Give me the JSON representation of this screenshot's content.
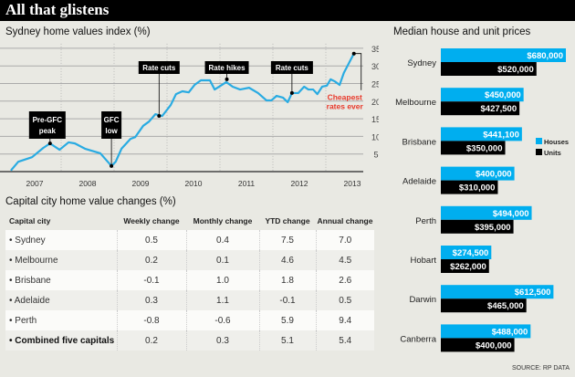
{
  "header": {
    "title": "All that glistens"
  },
  "colors": {
    "houses": "#00aeef",
    "units": "#000000",
    "line": "#29abe2",
    "highlight": "#e8392b",
    "background": "#e9e9e3"
  },
  "chart_data": [
    {
      "type": "line",
      "title": "Sydney home values index (%)",
      "xlabel": "",
      "ylabel": "",
      "x_ticks": [
        "2007",
        "2008",
        "2009",
        "2010",
        "2011",
        "2012",
        "2013"
      ],
      "y_ticks": [
        5,
        10,
        15,
        20,
        25,
        30,
        35
      ],
      "ylim": [
        0,
        35
      ],
      "xlim": [
        2007.0,
        2014.0
      ],
      "grid": true,
      "axis_side": "right",
      "series": [
        {
          "x": [
            2007.05,
            2007.19,
            2007.45,
            2007.66,
            2007.79,
            2007.97,
            2008.14,
            2008.26,
            2008.45,
            2008.74,
            2008.95,
            2009.03,
            2009.14,
            2009.31,
            2009.4,
            2009.55,
            2009.66,
            2009.78,
            2009.91,
            2010.07,
            2010.17,
            2010.29,
            2010.41,
            2010.52,
            2010.64,
            2010.81,
            2010.9,
            2011.12,
            2011.24,
            2011.38,
            2011.55,
            2011.72,
            2011.88,
            2011.97,
            2012.07,
            2012.19,
            2012.28,
            2012.36,
            2012.48,
            2012.59,
            2012.67,
            2012.76,
            2012.84,
            2012.93,
            2013.02,
            2013.09,
            2013.17,
            2013.26,
            2013.34,
            2013.53
          ],
          "y": [
            0.3,
            2.8,
            4.1,
            6.7,
            8.0,
            6.2,
            8.3,
            8.0,
            6.5,
            5.2,
            1.6,
            2.8,
            6.5,
            9.3,
            9.8,
            13.0,
            14.2,
            16.3,
            15.8,
            18.9,
            22.0,
            22.8,
            22.5,
            24.6,
            25.9,
            25.9,
            23.3,
            25.4,
            24.1,
            23.3,
            23.8,
            22.3,
            20.2,
            20.2,
            21.5,
            21.0,
            19.7,
            22.3,
            22.3,
            24.1,
            23.3,
            23.3,
            22.0,
            24.1,
            24.4,
            26.2,
            25.6,
            24.6,
            28.0,
            33.5
          ]
        }
      ],
      "annotations": [
        {
          "label": "Pre-GFC peak",
          "x": 2007.79,
          "y": 8.0
        },
        {
          "label": "GFC low",
          "x": 2008.95,
          "y": 1.6
        },
        {
          "label": "Rate cuts",
          "x": 2009.85,
          "y": 15.8
        },
        {
          "label": "Rate hikes",
          "x": 2011.13,
          "y": 26.2
        },
        {
          "label": "Rate cuts",
          "x": 2012.36,
          "y": 22.3
        },
        {
          "label": "Cheapest rates ever",
          "x": 2013.53,
          "y": 33.5,
          "highlight": true
        }
      ]
    },
    {
      "type": "bar",
      "orientation": "horizontal",
      "title": "Median house and unit prices",
      "categories": [
        "Sydney",
        "Melbourne",
        "Brisbane",
        "Adelaide",
        "Perth",
        "Hobart",
        "Darwin",
        "Canberra"
      ],
      "legend_position": "right",
      "series": [
        {
          "name": "Houses",
          "values": [
            680000,
            450000,
            441100,
            400000,
            494000,
            274500,
            612500,
            488000
          ],
          "labels": [
            "$680,000",
            "$450,000",
            "$441,100",
            "$400,000",
            "$494,000",
            "$274,500",
            "$612,500",
            "$488,000"
          ]
        },
        {
          "name": "Units",
          "values": [
            520000,
            427500,
            350000,
            310000,
            395000,
            262000,
            465000,
            400000
          ],
          "labels": [
            "$520,000",
            "$427,500",
            "$350,000",
            "$310,000",
            "$395,000",
            "$262,000",
            "$465,000",
            "$400,000"
          ]
        }
      ]
    }
  ],
  "table": {
    "title": "Capital city home value changes (%)",
    "headers": [
      "Capital city",
      "Weekly change",
      "Monthly change",
      "YTD change",
      "Annual change"
    ],
    "rows": [
      [
        "• Sydney",
        "0.5",
        "0.4",
        "7.5",
        "7.0"
      ],
      [
        "• Melbourne",
        "0.2",
        "0.1",
        "4.6",
        "4.5"
      ],
      [
        "• Brisbane",
        "-0.1",
        "1.0",
        "1.8",
        "2.6"
      ],
      [
        "• Adelaide",
        "0.3",
        "1.1",
        "-0.1",
        "0.5"
      ],
      [
        "• Perth",
        "-0.8",
        "-0.6",
        "5.9",
        "9.4"
      ],
      [
        "• Combined five capitals",
        "0.2",
        "0.3",
        "5.1",
        "5.4"
      ]
    ]
  },
  "source": "SOURCE: RP DATA"
}
